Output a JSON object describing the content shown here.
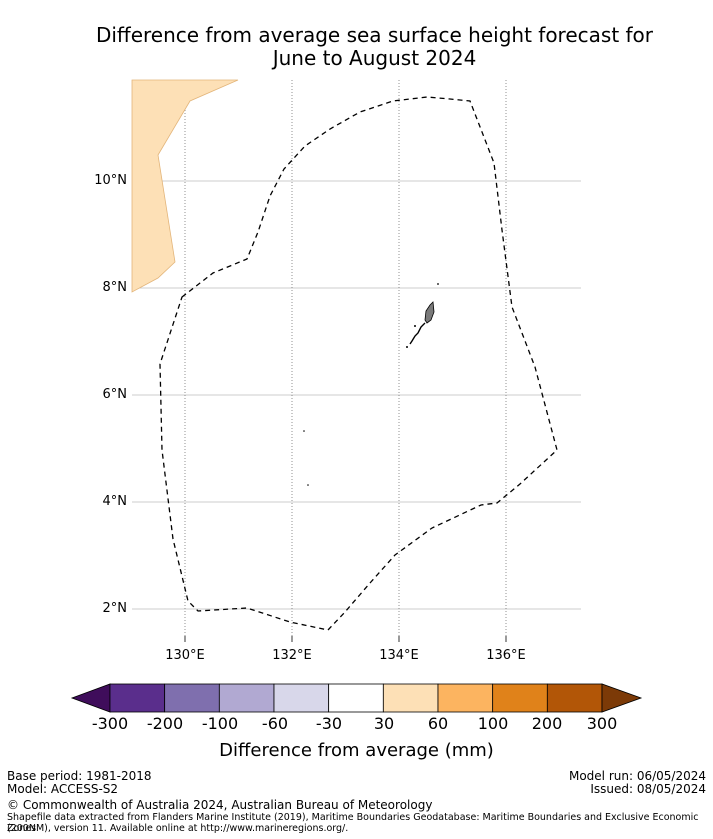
{
  "title_line1": "Difference from average sea surface height forecast for",
  "title_line2": "June to August 2024",
  "lat_labels": [
    "10°N",
    "8°N",
    "6°N",
    "4°N",
    "2°N"
  ],
  "lon_labels": [
    "130°E",
    "132°E",
    "134°E",
    "136°E"
  ],
  "colorbar": {
    "title": "Difference from average (mm)",
    "ticks": [
      "-300",
      "-200",
      "-100",
      "-60",
      "-30",
      "30",
      "60",
      "100",
      "200",
      "300"
    ],
    "colors": [
      "#3f0d5b",
      "#5a2e8c",
      "#7f6fae",
      "#b1a9d2",
      "#d8d7ea",
      "#ffffff",
      "#fde0b6",
      "#fcb460",
      "#e0821a",
      "#b25607",
      "#7c3a07"
    ]
  },
  "colors": {
    "land": "#fde0b6",
    "land_edge": "#e3b57a",
    "island": "#7a7a7a"
  },
  "footer": {
    "base_period": "Base period: 1981-2018",
    "model": "Model: ACCESS-S2",
    "model_run": "Model run: 06/05/2024",
    "issued": "Issued: 08/05/2024",
    "copyright": "© Commonwealth of Australia 2024, Australian Bureau of Meteorology",
    "source_line1": "Shapefile data extracted from Flanders Marine Institute (2019), Maritime Boundaries Geodatabase: Maritime Boundaries and Exclusive Economic Zones",
    "source_line2": "(200NM), version 11. Available online at http://www.marineregions.org/."
  }
}
